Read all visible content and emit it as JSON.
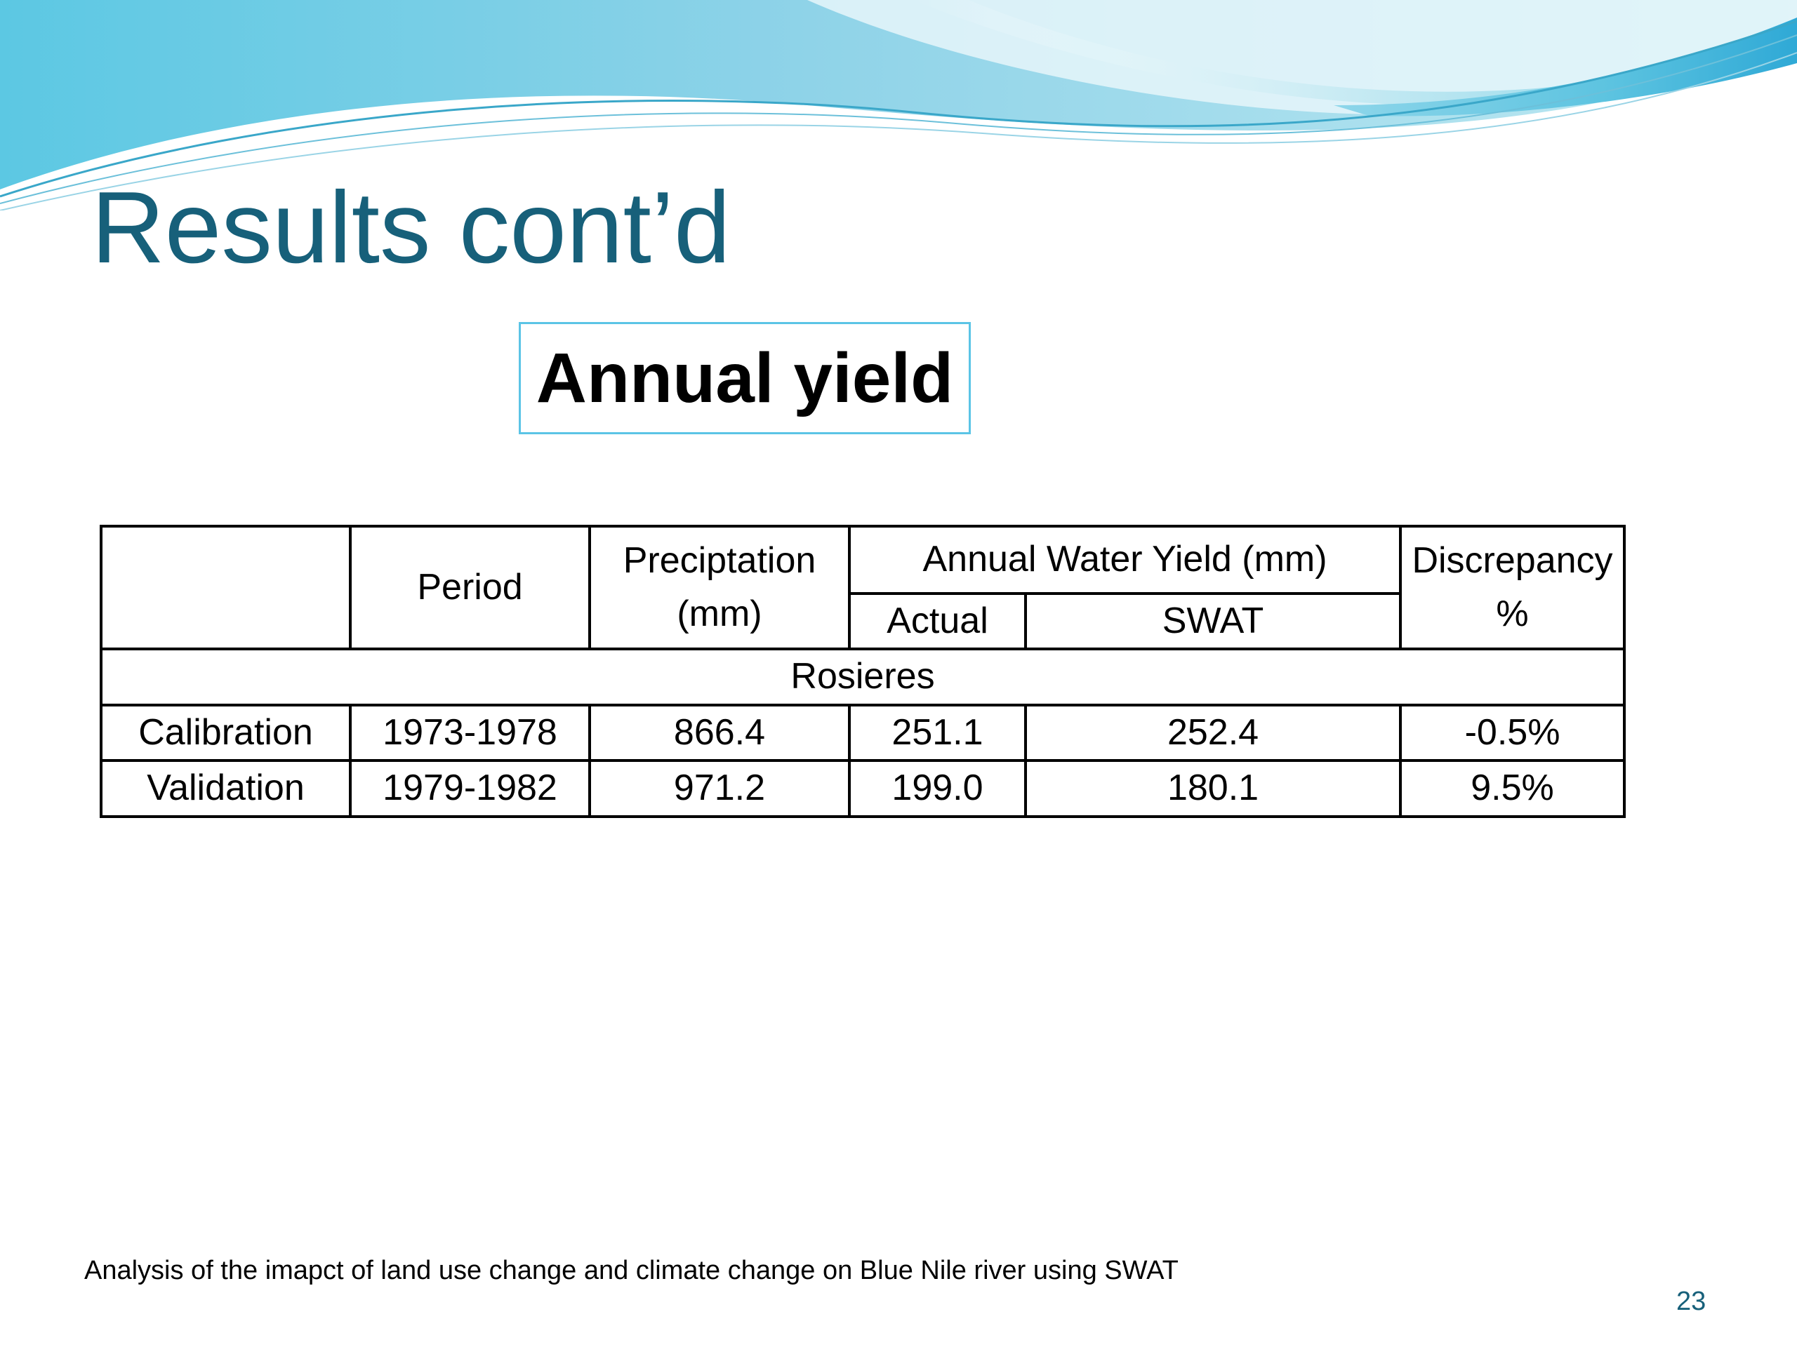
{
  "slide": {
    "title": "Results cont’d",
    "subtitle": "Annual yield",
    "footer": "Analysis of the imapct of land use change and climate change on Blue Nile river using SWAT",
    "page_number": "23"
  },
  "table": {
    "headers": {
      "blank": "",
      "period": "Period",
      "precipitation_line1": "Preciptation",
      "precipitation_line2": "(mm)",
      "annual_water_yield": "Annual Water Yield (mm)",
      "actual": "Actual",
      "swat": "SWAT",
      "discrepancy_line1": "Discrepancy",
      "discrepancy_line2": "%"
    },
    "group": "Rosieres",
    "rows": [
      {
        "label": "Calibration",
        "period": "1973-1978",
        "precipitation": "866.4",
        "actual": "251.1",
        "swat": "252.4",
        "discrepancy": "-0.5%"
      },
      {
        "label": "Validation",
        "period": "1979-1982",
        "precipitation": "971.2",
        "actual": "199.0",
        "swat": "180.1",
        "discrepancy": "9.5%"
      }
    ]
  },
  "colors": {
    "title": "#17607a",
    "box_border": "#5bc4e6",
    "wave_light": "#b3e6ef",
    "wave_mid": "#7fcfe3",
    "wave_dark": "#3fb6d9"
  }
}
